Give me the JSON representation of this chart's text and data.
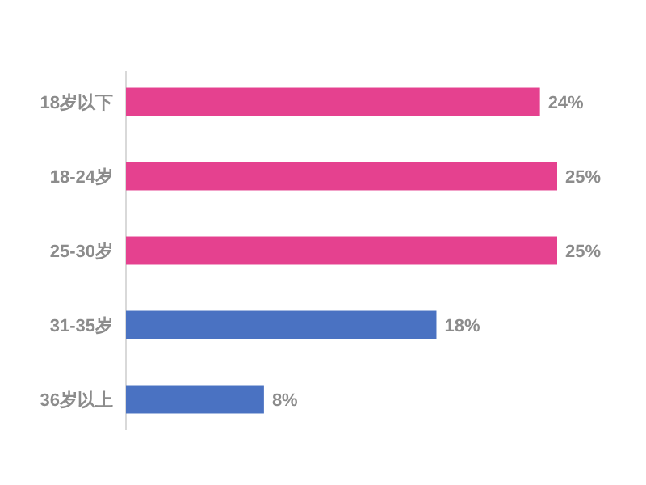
{
  "chart_data": {
    "type": "bar",
    "orientation": "horizontal",
    "categories": [
      "18岁以下",
      "18-24岁",
      "25-30岁",
      "31-35岁",
      "36岁以上"
    ],
    "values": [
      24,
      25,
      25,
      18,
      8
    ],
    "colors": [
      "#e5418f",
      "#e5418f",
      "#e5418f",
      "#4a72c2",
      "#4a72c2"
    ],
    "value_labels": [
      "24%",
      "25%",
      "25%",
      "18%",
      "8%"
    ]
  }
}
